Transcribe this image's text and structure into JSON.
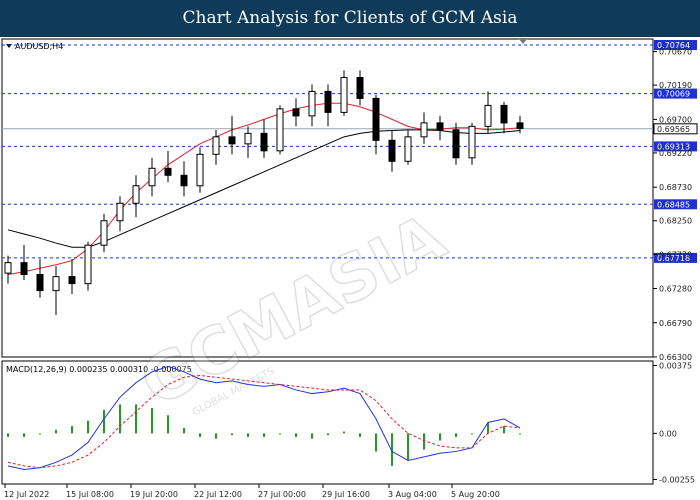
{
  "title": "Chart Analysis for Clients of GCM Asia",
  "watermark": "GCMASIA",
  "watermark_sub": "GLOBAL MARKETS",
  "chart_data": [
    {
      "type": "candlestick",
      "symbol_label": "AUDUSD,H4",
      "x_tick_labels": [
        "12 Jul 2022",
        "15 Jul 08:00",
        "19 Jul 20:00",
        "22 Jul 12:00",
        "27 Jul 00:00",
        "29 Jul 16:00",
        "3 Aug 04:00",
        "5 Aug 20:00"
      ],
      "y_ticks": [
        0.7067,
        0.7019,
        0.697,
        0.6922,
        0.6873,
        0.6825,
        0.6777,
        0.6728,
        0.6679,
        0.663
      ],
      "y_tick_labels": [
        "0.70670",
        "0.70190",
        "0.69700",
        "0.69220",
        "0.68730",
        "0.68250",
        "0.67770",
        "0.67280",
        "0.66790",
        "0.66300"
      ],
      "ylim": [
        0.663,
        0.7085
      ],
      "current_price": 0.69565,
      "current_price_label": "0.69565",
      "levels": [
        {
          "value": 0.70764,
          "label": "0.70764"
        },
        {
          "value": 0.70069,
          "label": "0.70069"
        },
        {
          "value": 0.69313,
          "label": "0.69313"
        },
        {
          "value": 0.68485,
          "label": "0.68485"
        },
        {
          "value": 0.67718,
          "label": "0.67718"
        }
      ],
      "moving_averages": [
        {
          "color": "#e0222c",
          "values": [
            0.6748,
            0.6752,
            0.6757,
            0.6762,
            0.6768,
            0.6785,
            0.681,
            0.684,
            0.6865,
            0.6885,
            0.6905,
            0.692,
            0.6935,
            0.6945,
            0.6955,
            0.6962,
            0.697,
            0.6978,
            0.6985,
            0.699,
            0.6993,
            0.6993,
            0.6988,
            0.698,
            0.697,
            0.696,
            0.6955,
            0.6956,
            0.6958,
            0.6958,
            0.6955,
            0.6956,
            0.6958
          ]
        },
        {
          "color": "#000000",
          "values": [
            0.6812,
            0.6806,
            0.68,
            0.6793,
            0.6787,
            0.6787,
            0.6795,
            0.6805,
            0.6815,
            0.6825,
            0.6835,
            0.6845,
            0.6855,
            0.6865,
            0.6875,
            0.6885,
            0.6895,
            0.6905,
            0.6915,
            0.6925,
            0.6935,
            0.6945,
            0.695,
            0.6953,
            0.6954,
            0.6955,
            0.6955,
            0.6954,
            0.6951,
            0.695,
            0.695,
            0.6952,
            0.6954
          ]
        }
      ],
      "candles": [
        {
          "o": 0.675,
          "h": 0.6775,
          "l": 0.6735,
          "c": 0.6765
        },
        {
          "o": 0.6765,
          "h": 0.679,
          "l": 0.674,
          "c": 0.6748
        },
        {
          "o": 0.6748,
          "h": 0.677,
          "l": 0.6715,
          "c": 0.6725
        },
        {
          "o": 0.6725,
          "h": 0.676,
          "l": 0.669,
          "c": 0.6745
        },
        {
          "o": 0.6745,
          "h": 0.677,
          "l": 0.672,
          "c": 0.6735
        },
        {
          "o": 0.6735,
          "h": 0.6795,
          "l": 0.6725,
          "c": 0.679
        },
        {
          "o": 0.679,
          "h": 0.6835,
          "l": 0.678,
          "c": 0.6825
        },
        {
          "o": 0.6825,
          "h": 0.686,
          "l": 0.681,
          "c": 0.685
        },
        {
          "o": 0.685,
          "h": 0.689,
          "l": 0.683,
          "c": 0.6875
        },
        {
          "o": 0.6875,
          "h": 0.6915,
          "l": 0.686,
          "c": 0.69
        },
        {
          "o": 0.69,
          "h": 0.6925,
          "l": 0.688,
          "c": 0.689
        },
        {
          "o": 0.689,
          "h": 0.691,
          "l": 0.686,
          "c": 0.6875
        },
        {
          "o": 0.6875,
          "h": 0.693,
          "l": 0.6865,
          "c": 0.692
        },
        {
          "o": 0.692,
          "h": 0.6955,
          "l": 0.6905,
          "c": 0.6945
        },
        {
          "o": 0.6945,
          "h": 0.6975,
          "l": 0.692,
          "c": 0.6935
        },
        {
          "o": 0.6935,
          "h": 0.696,
          "l": 0.6915,
          "c": 0.695
        },
        {
          "o": 0.695,
          "h": 0.697,
          "l": 0.6915,
          "c": 0.6925
        },
        {
          "o": 0.6925,
          "h": 0.699,
          "l": 0.692,
          "c": 0.6985
        },
        {
          "o": 0.6985,
          "h": 0.7,
          "l": 0.696,
          "c": 0.6975
        },
        {
          "o": 0.6975,
          "h": 0.702,
          "l": 0.696,
          "c": 0.701
        },
        {
          "o": 0.701,
          "h": 0.702,
          "l": 0.696,
          "c": 0.698
        },
        {
          "o": 0.698,
          "h": 0.704,
          "l": 0.6975,
          "c": 0.703
        },
        {
          "o": 0.703,
          "h": 0.704,
          "l": 0.699,
          "c": 0.7
        },
        {
          "o": 0.7,
          "h": 0.7005,
          "l": 0.692,
          "c": 0.694
        },
        {
          "o": 0.694,
          "h": 0.6955,
          "l": 0.6895,
          "c": 0.691
        },
        {
          "o": 0.691,
          "h": 0.6955,
          "l": 0.6905,
          "c": 0.6945
        },
        {
          "o": 0.6945,
          "h": 0.698,
          "l": 0.6935,
          "c": 0.6965
        },
        {
          "o": 0.6965,
          "h": 0.6975,
          "l": 0.694,
          "c": 0.6955
        },
        {
          "o": 0.6955,
          "h": 0.6965,
          "l": 0.6905,
          "c": 0.6915
        },
        {
          "o": 0.6915,
          "h": 0.6965,
          "l": 0.6905,
          "c": 0.696
        },
        {
          "o": 0.696,
          "h": 0.701,
          "l": 0.695,
          "c": 0.699
        },
        {
          "o": 0.699,
          "h": 0.6995,
          "l": 0.695,
          "c": 0.6965
        },
        {
          "o": 0.6965,
          "h": 0.6975,
          "l": 0.695,
          "c": 0.6957
        }
      ]
    },
    {
      "type": "macd",
      "label": "MACD(12,26,9) 0.000235 0.000310 -0.000075",
      "y_ticks": [
        0.00375,
        0.0,
        -0.00255
      ],
      "y_tick_labels": [
        "0.00375",
        "0.00",
        "-0.00255"
      ],
      "ylim": [
        -0.0028,
        0.004
      ],
      "macd": [
        -0.0018,
        -0.002,
        -0.0019,
        -0.0016,
        -0.0012,
        -0.0005,
        0.0008,
        0.002,
        0.0028,
        0.0034,
        0.0037,
        0.0034,
        0.003,
        0.0028,
        0.0029,
        0.0027,
        0.0026,
        0.0027,
        0.0024,
        0.0022,
        0.0023,
        0.0025,
        0.0022,
        0.0008,
        -0.001,
        -0.0015,
        -0.0013,
        -0.0011,
        -0.001,
        -0.0008,
        0.0006,
        0.0008,
        0.0003
      ],
      "signal": [
        -0.0016,
        -0.0018,
        -0.0019,
        -0.0018,
        -0.0016,
        -0.0012,
        -0.0005,
        0.0004,
        0.0012,
        0.002,
        0.0027,
        0.0031,
        0.0032,
        0.0031,
        0.003,
        0.0029,
        0.0028,
        0.0027,
        0.0026,
        0.0025,
        0.0024,
        0.0024,
        0.0024,
        0.0018,
        0.0008,
        0.0,
        -0.0004,
        -0.0007,
        -0.0008,
        -0.0008,
        0.0,
        0.0004,
        0.0003
      ],
      "histogram": [
        -0.0002,
        -0.0002,
        0.0,
        0.0002,
        0.0004,
        0.0007,
        0.0013,
        0.0016,
        0.0016,
        0.0014,
        0.001,
        0.0003,
        -0.0002,
        -0.0003,
        -0.0001,
        -0.0002,
        -0.0002,
        0.0,
        -0.0002,
        -0.0003,
        -0.0001,
        0.0001,
        -0.0002,
        -0.001,
        -0.0018,
        -0.0015,
        -0.0009,
        -0.0004,
        -0.0002,
        0.0,
        0.0006,
        0.0004,
        0.0
      ]
    }
  ]
}
